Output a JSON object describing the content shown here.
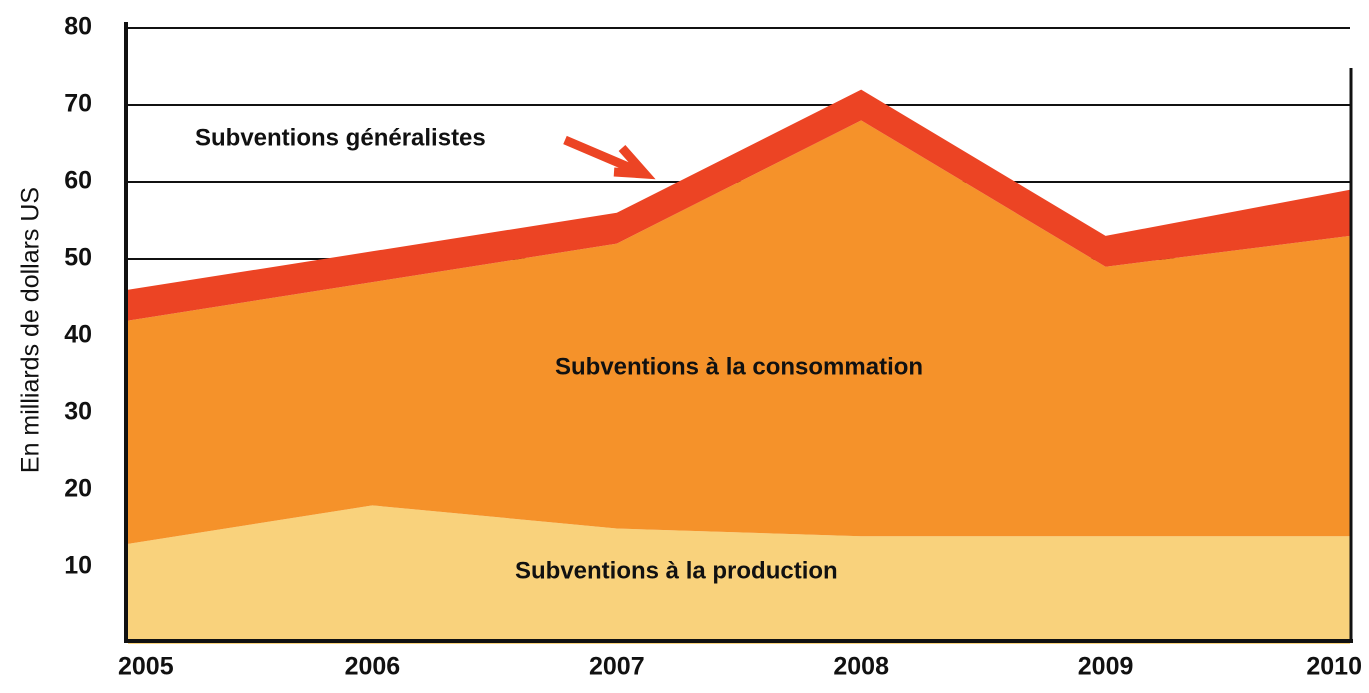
{
  "chart_data": {
    "type": "stacked_area",
    "y_label": "En milliards de dollars US",
    "categories": [
      "2005",
      "2006",
      "2007",
      "2008",
      "2009",
      "2010"
    ],
    "series": [
      {
        "name": "Subventions à la production",
        "color": "#f9d27c",
        "values": [
          13,
          18,
          15,
          14,
          14,
          14
        ]
      },
      {
        "name": "Subventions à la consommation",
        "color": "#f5922a",
        "values": [
          29,
          29,
          37,
          54,
          35,
          39
        ]
      },
      {
        "name": "Subventions généralistes",
        "color": "#ec4424",
        "values": [
          4,
          4,
          4,
          4,
          4,
          6
        ]
      }
    ],
    "ylim": [
      0,
      80
    ],
    "yticks": [
      10,
      20,
      30,
      40,
      50,
      60,
      70,
      80
    ],
    "grid": true
  }
}
